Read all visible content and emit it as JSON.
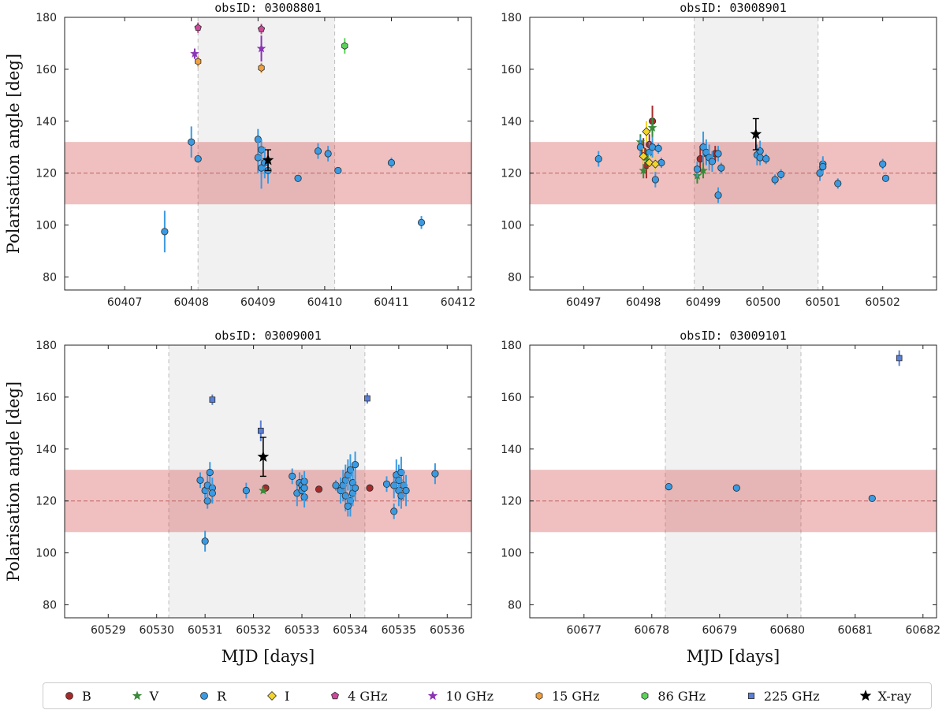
{
  "chart_data": [
    {
      "type": "scatter",
      "title": "obsID: 03008801",
      "ylabel": "Polarisation angle [deg]",
      "xlabel": "",
      "xlim": [
        60406.1,
        60412.2
      ],
      "ylim": [
        75,
        180
      ],
      "xticks": [
        60407,
        60408,
        60409,
        60410,
        60411,
        60412
      ],
      "yticks": [
        80,
        100,
        120,
        140,
        160,
        180
      ],
      "xray_window": [
        60408.1,
        60410.15
      ],
      "series": [
        {
          "name": "R",
          "points": [
            [
              60407.6,
              97.5,
              8
            ],
            [
              60408.0,
              132,
              6
            ],
            [
              60408.1,
              125.5,
              1
            ],
            [
              60409.0,
              133,
              4
            ],
            [
              60409.0,
              126,
              6
            ],
            [
              60409.05,
              122,
              8
            ],
            [
              60409.05,
              129,
              4
            ],
            [
              60409.1,
              124,
              6
            ],
            [
              60409.15,
              121,
              5
            ],
            [
              60409.6,
              118,
              1
            ],
            [
              60409.9,
              128.5,
              3
            ],
            [
              60410.05,
              127.5,
              3
            ],
            [
              60410.2,
              121,
              1
            ],
            [
              60411.0,
              124,
              2
            ],
            [
              60411.45,
              101,
              2.5
            ]
          ]
        },
        {
          "name": "4 GHz",
          "points": [
            [
              60408.1,
              176,
              2
            ],
            [
              60409.05,
              175.5,
              2
            ]
          ]
        },
        {
          "name": "10 GHz",
          "points": [
            [
              60408.05,
              166,
              2
            ],
            [
              60409.05,
              168,
              5
            ]
          ]
        },
        {
          "name": "15 GHz",
          "points": [
            [
              60408.1,
              163,
              2
            ],
            [
              60409.05,
              160.5,
              2
            ]
          ]
        },
        {
          "name": "86 GHz",
          "points": [
            [
              60410.3,
              169,
              3
            ]
          ]
        },
        {
          "name": "X-ray",
          "points": [
            [
              60409.15,
              125,
              4
            ]
          ]
        }
      ]
    },
    {
      "type": "scatter",
      "title": "obsID: 03008901",
      "ylabel": "",
      "xlabel": "",
      "xlim": [
        60496.1,
        60502.9
      ],
      "ylim": [
        75,
        180
      ],
      "xticks": [
        60497,
        60498,
        60499,
        60500,
        60501,
        60502
      ],
      "yticks": [
        80,
        100,
        120,
        140,
        160,
        180
      ],
      "xray_window": [
        60498.85,
        60500.92
      ],
      "series": [
        {
          "name": "B",
          "points": [
            [
              60498.0,
              128.5,
              5
            ],
            [
              60498.05,
              123,
              5
            ],
            [
              60498.1,
              131,
              4
            ],
            [
              60498.15,
              140,
              6
            ],
            [
              60498.95,
              125.5,
              5
            ],
            [
              60499.05,
              127.5,
              4
            ],
            [
              60499.2,
              127.5,
              3
            ]
          ]
        },
        {
          "name": "V",
          "points": [
            [
              60497.95,
              132,
              3
            ],
            [
              60498.0,
              121,
              3
            ],
            [
              60498.05,
              126,
              3
            ],
            [
              60498.15,
              137.5,
              4
            ],
            [
              60498.9,
              119,
              3
            ],
            [
              60499.0,
              121,
              3
            ]
          ]
        },
        {
          "name": "R",
          "points": [
            [
              60497.25,
              125.5,
              3
            ],
            [
              60497.95,
              130,
              4
            ],
            [
              60498.1,
              128,
              4
            ],
            [
              60498.15,
              130,
              4
            ],
            [
              60498.2,
              117.5,
              3
            ],
            [
              60498.25,
              129.5,
              2
            ],
            [
              60498.3,
              124,
              2
            ],
            [
              60498.9,
              121.5,
              3
            ],
            [
              60499.0,
              130,
              6
            ],
            [
              60499.05,
              128,
              5
            ],
            [
              60499.1,
              126,
              5
            ],
            [
              60499.15,
              124.5,
              4
            ],
            [
              60499.25,
              127.5,
              3
            ],
            [
              60499.25,
              111.5,
              3
            ],
            [
              60499.3,
              122,
              2
            ],
            [
              60499.9,
              127,
              4
            ],
            [
              60499.95,
              128.5,
              4
            ],
            [
              60499.95,
              126,
              3
            ],
            [
              60500.05,
              125.5,
              2
            ],
            [
              60500.2,
              117.5,
              2
            ],
            [
              60500.3,
              119.5,
              2
            ],
            [
              60500.95,
              120,
              3
            ],
            [
              60501.0,
              123.5,
              3
            ],
            [
              60501.0,
              122.5,
              3
            ],
            [
              60501.25,
              116,
              2
            ],
            [
              60502.0,
              123.5,
              2
            ],
            [
              60502.05,
              118,
              1
            ]
          ]
        },
        {
          "name": "I",
          "points": [
            [
              60498.0,
              126.5,
              3
            ],
            [
              60498.05,
              136,
              4
            ],
            [
              60498.1,
              124,
              3
            ],
            [
              60498.2,
              123.5,
              3
            ]
          ]
        },
        {
          "name": "X-ray",
          "points": [
            [
              60499.88,
              135,
              6
            ]
          ]
        }
      ]
    },
    {
      "type": "scatter",
      "title": "obsID: 03009001",
      "ylabel": "Polarisation angle [deg]",
      "xlabel": "MJD [days]",
      "xlim": [
        60528.1,
        60536.5
      ],
      "ylim": [
        75,
        180
      ],
      "xticks": [
        60529,
        60530,
        60531,
        60532,
        60533,
        60534,
        60535,
        60536
      ],
      "yticks": [
        80,
        100,
        120,
        140,
        160,
        180
      ],
      "xray_window": [
        60530.25,
        60534.3
      ],
      "series": [
        {
          "name": "B",
          "points": [
            [
              60532.25,
              125,
              1
            ],
            [
              60533.35,
              124.5,
              1
            ],
            [
              60534.4,
              125,
              1
            ]
          ]
        },
        {
          "name": "V",
          "points": [
            [
              60532.2,
              124,
              1
            ]
          ]
        },
        {
          "name": "R",
          "points": [
            [
              60530.9,
              128,
              3
            ],
            [
              60531.0,
              124,
              3
            ],
            [
              60531.05,
              120,
              3
            ],
            [
              60531.05,
              126,
              5
            ],
            [
              60531.1,
              131,
              4
            ],
            [
              60531.0,
              104.5,
              4
            ],
            [
              60531.15,
              125,
              4
            ],
            [
              60531.15,
              123,
              4
            ],
            [
              60531.85,
              124,
              3
            ],
            [
              60532.8,
              129.5,
              3
            ],
            [
              60532.9,
              123,
              5
            ],
            [
              60532.95,
              127,
              4
            ],
            [
              60533.0,
              126,
              4
            ],
            [
              60533.0,
              124,
              4
            ],
            [
              60533.05,
              121.5,
              4
            ],
            [
              60533.05,
              127.5,
              4
            ],
            [
              60533.05,
              125,
              5
            ],
            [
              60533.7,
              126,
              2
            ],
            [
              60533.8,
              124,
              5
            ],
            [
              60533.85,
              126,
              6
            ],
            [
              60533.9,
              128,
              6
            ],
            [
              60533.9,
              122,
              6
            ],
            [
              60533.95,
              130,
              6
            ],
            [
              60534.0,
              132,
              6
            ],
            [
              60534.0,
              120,
              6
            ],
            [
              60534.05,
              127,
              5
            ],
            [
              60534.05,
              123,
              5
            ],
            [
              60534.1,
              134,
              5
            ],
            [
              60534.1,
              125,
              5
            ],
            [
              60533.95,
              118,
              4
            ],
            [
              60534.75,
              126.5,
              3
            ],
            [
              60534.9,
              116,
              3
            ],
            [
              60534.9,
              126,
              5
            ],
            [
              60534.95,
              130,
              6
            ],
            [
              60535.0,
              124,
              6
            ],
            [
              60535.0,
              128,
              6
            ],
            [
              60535.05,
              122,
              5
            ],
            [
              60535.05,
              131,
              6
            ],
            [
              60535.1,
              126,
              6
            ],
            [
              60535.15,
              124,
              6
            ],
            [
              60535.75,
              130.5,
              4
            ]
          ]
        },
        {
          "name": "225 GHz",
          "points": [
            [
              60531.15,
              159,
              2
            ],
            [
              60532.15,
              147,
              4
            ],
            [
              60534.35,
              159.5,
              2
            ]
          ]
        },
        {
          "name": "X-ray",
          "points": [
            [
              60532.2,
              137,
              7.5
            ]
          ]
        }
      ]
    },
    {
      "type": "scatter",
      "title": "obsID: 03009101",
      "ylabel": "",
      "xlabel": "MJD [days]",
      "xlim": [
        60676.2,
        60682.2
      ],
      "ylim": [
        75,
        180
      ],
      "xticks": [
        60677,
        60678,
        60679,
        60680,
        60681,
        60682
      ],
      "yticks": [
        80,
        100,
        120,
        140,
        160,
        180
      ],
      "xray_window": [
        60678.2,
        60680.2
      ],
      "series": [
        {
          "name": "R",
          "points": [
            [
              60678.25,
              125.5,
              1
            ],
            [
              60679.25,
              125,
              1
            ],
            [
              60681.25,
              121,
              1
            ]
          ]
        },
        {
          "name": "225 GHz",
          "points": [
            [
              60681.65,
              175,
              3
            ]
          ]
        }
      ]
    }
  ],
  "reference": {
    "line": 120,
    "band": [
      108,
      132
    ]
  },
  "legend": [
    {
      "label": "B",
      "marker": "circle",
      "color": "#a52a2a"
    },
    {
      "label": "V",
      "marker": "star",
      "color": "#3a8a3a"
    },
    {
      "label": "R",
      "marker": "circle",
      "color": "#3b9ae1"
    },
    {
      "label": "I",
      "marker": "diamond",
      "color": "#f2d42a"
    },
    {
      "label": "4 GHz",
      "marker": "pentagon",
      "color": "#cc4a9a"
    },
    {
      "label": "10 GHz",
      "marker": "star",
      "color": "#8a35b5"
    },
    {
      "label": "15 GHz",
      "marker": "hexagon",
      "color": "#f0a040"
    },
    {
      "label": "86 GHz",
      "marker": "hexagon",
      "color": "#5bd35b"
    },
    {
      "label": "225 GHz",
      "marker": "square",
      "color": "#5a7fd6"
    },
    {
      "label": "X-ray",
      "marker": "star",
      "color": "#000000"
    }
  ]
}
